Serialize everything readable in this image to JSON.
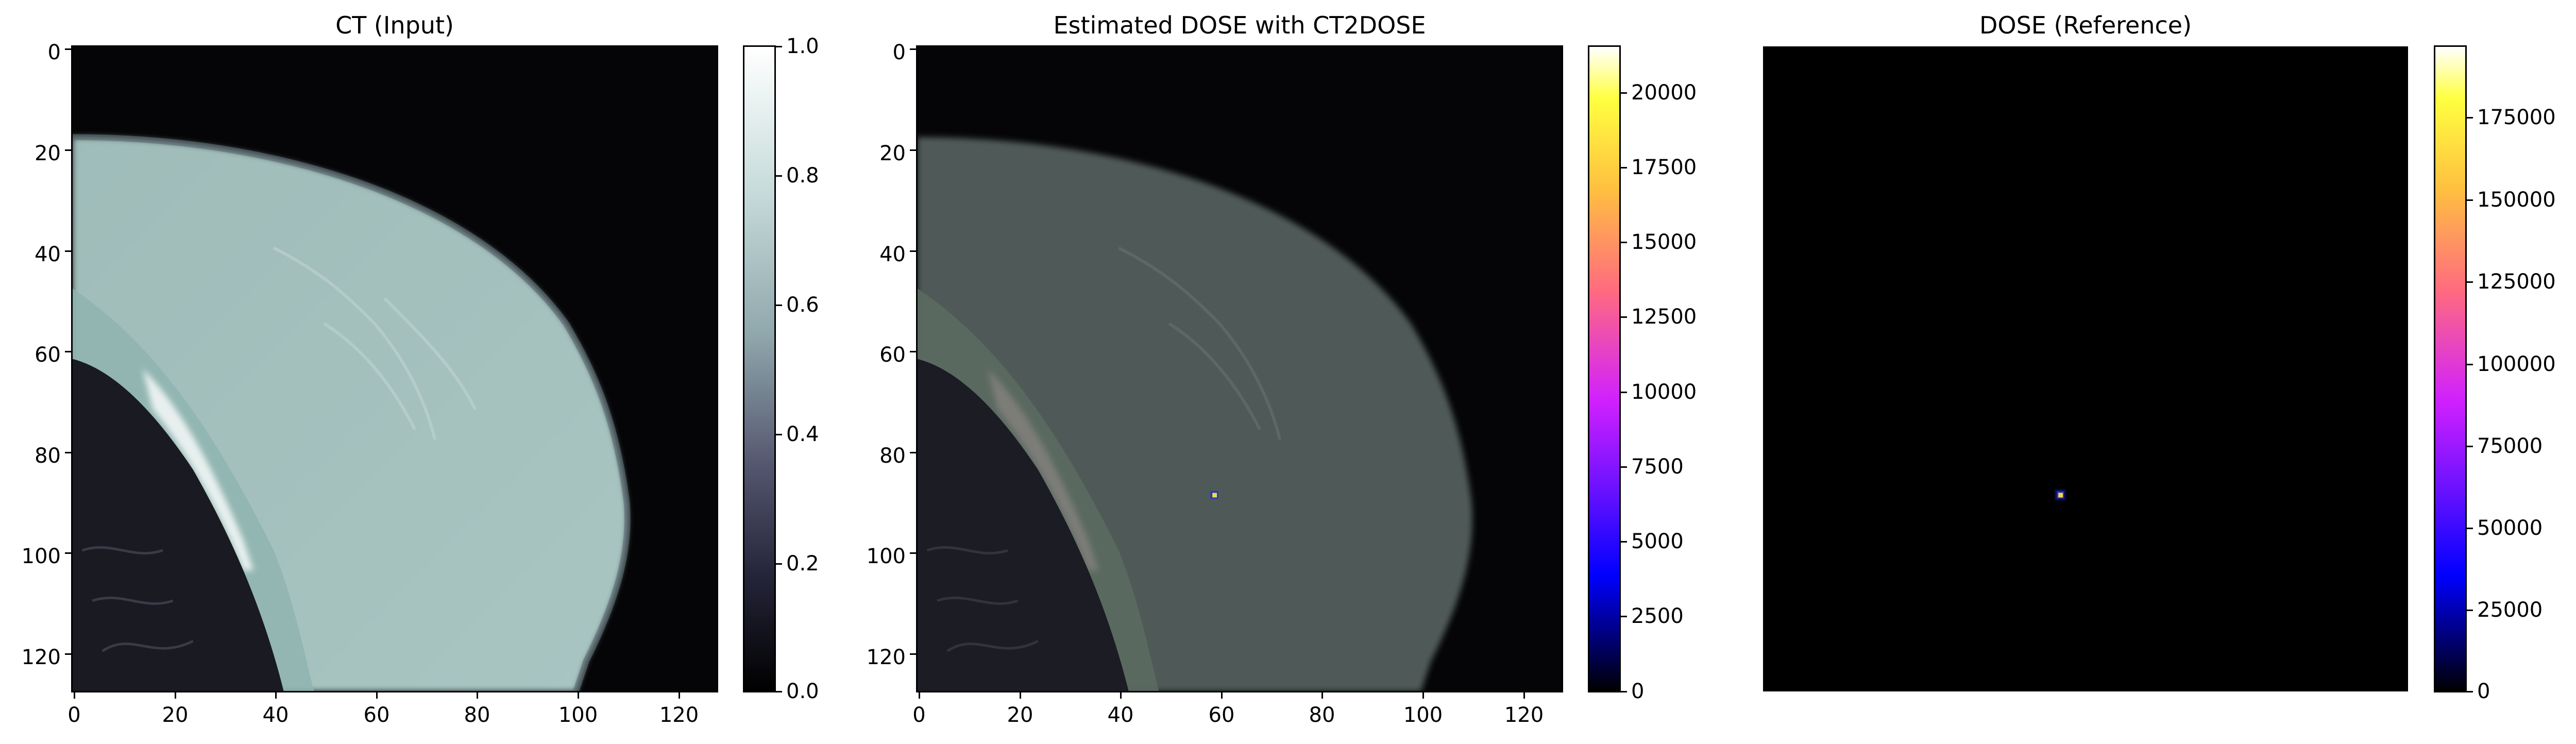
{
  "panels": [
    {
      "title": "CT (Input)",
      "y_ticks": [
        "0",
        "20",
        "40",
        "60",
        "80",
        "100",
        "120"
      ],
      "x_ticks": [
        "0",
        "20",
        "40",
        "60",
        "80",
        "100",
        "120"
      ],
      "colorbar_ticks": [
        "1.0",
        "0.8",
        "0.6",
        "0.4",
        "0.2",
        "0.0"
      ],
      "colormap": "bone"
    },
    {
      "title": "Estimated DOSE with CT2DOSE",
      "y_ticks": [
        "0",
        "20",
        "40",
        "60",
        "80",
        "100",
        "120"
      ],
      "x_ticks": [
        "0",
        "20",
        "40",
        "60",
        "80",
        "100",
        "120"
      ],
      "colorbar_ticks": [
        "20000",
        "17500",
        "15000",
        "12500",
        "10000",
        "7500",
        "5000",
        "2500",
        "0"
      ],
      "colormap": "gnuplot2",
      "hotspot": {
        "x": 59,
        "y": 89
      }
    },
    {
      "title": "DOSE (Reference)",
      "colorbar_ticks": [
        "175000",
        "150000",
        "125000",
        "100000",
        "75000",
        "50000",
        "25000",
        "0"
      ],
      "colormap": "gnuplot2",
      "hotspot": {
        "x": 59,
        "y": 89
      }
    }
  ],
  "image_extent": {
    "x": [
      0,
      128
    ],
    "y": [
      0,
      128
    ]
  },
  "colors": {
    "tissue": "#a8c4c1",
    "bone_highlight": "#e8f0ef",
    "lung": "#1a1a22",
    "background": "#050507",
    "hotspot": "#f5d84a"
  }
}
